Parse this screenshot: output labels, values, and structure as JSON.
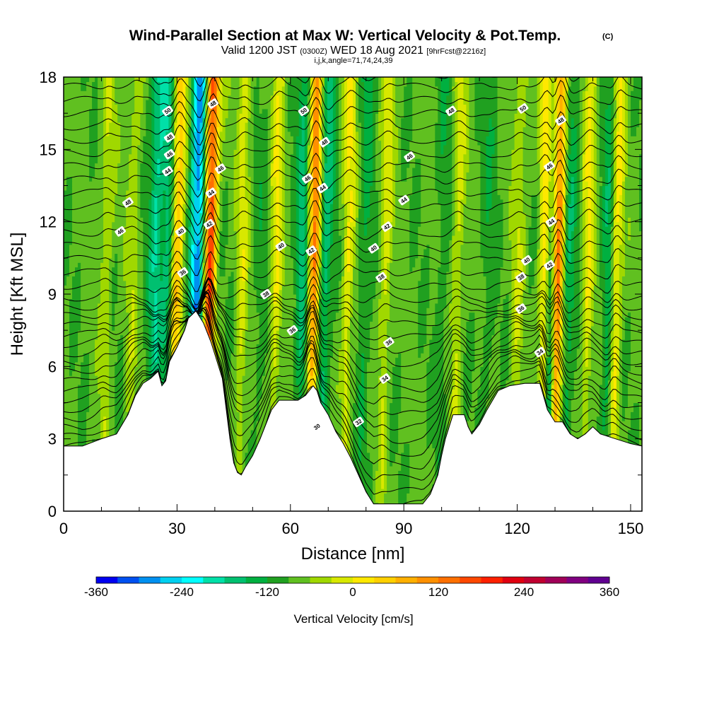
{
  "chart_data": {
    "type": "heatmap",
    "title": "Wind-Parallel Section at Max W: Vertical Velocity & Pot.Temp.",
    "title_mark": "(C)",
    "subtitle": {
      "prefix": "Valid 1200 JST",
      "utc": "(0300Z)",
      "date": "WED 18 Aug 2021",
      "forecast": "[9hrFcst@2216z]"
    },
    "subtitle2": "i,j,k,angle=71,74,24,39",
    "xlabel": "Distance [nm]",
    "ylabel": "Height [Kft MSL]",
    "xlim": [
      0,
      153
    ],
    "ylim": [
      0,
      18
    ],
    "x_ticks": [
      0,
      30,
      60,
      90,
      120,
      150
    ],
    "y_ticks": [
      0,
      3,
      6,
      9,
      12,
      15,
      18
    ],
    "grid": false,
    "colorbar": {
      "title": "Vertical Velocity [cm/s]",
      "placement": "bottom",
      "min": -360,
      "max": 360,
      "step": 40,
      "ticks": [
        "-360",
        "-240",
        "-120",
        "0",
        "120",
        "240",
        "360"
      ],
      "colors": [
        "#0000f0",
        "#0050f0",
        "#0090f0",
        "#00d0f0",
        "#00ffff",
        "#00e0a8",
        "#00c070",
        "#00b040",
        "#20a020",
        "#60c020",
        "#a0d800",
        "#d8e800",
        "#ffe800",
        "#ffd000",
        "#ffb000",
        "#ff9000",
        "#ff7000",
        "#ff4800",
        "#ff2000",
        "#e00010",
        "#c00030",
        "#a00058",
        "#800080",
        "#600090"
      ]
    },
    "terrain_profile": [
      [
        0,
        2.7
      ],
      [
        5,
        2.7
      ],
      [
        10,
        3.0
      ],
      [
        14,
        3.2
      ],
      [
        17,
        4.0
      ],
      [
        19,
        4.8
      ],
      [
        21,
        5.3
      ],
      [
        23,
        5.5
      ],
      [
        25,
        5.8
      ],
      [
        26,
        5.2
      ],
      [
        27,
        5.4
      ],
      [
        28,
        6.2
      ],
      [
        30,
        6.8
      ],
      [
        32,
        7.5
      ],
      [
        33,
        8.0
      ],
      [
        35,
        8.3
      ],
      [
        37,
        7.8
      ],
      [
        39,
        7.0
      ],
      [
        40,
        6.5
      ],
      [
        42,
        5.5
      ],
      [
        44,
        3.0
      ],
      [
        45,
        2.0
      ],
      [
        46,
        1.6
      ],
      [
        47,
        1.5
      ],
      [
        48,
        1.8
      ],
      [
        50,
        2.3
      ],
      [
        52,
        3.0
      ],
      [
        54,
        3.8
      ],
      [
        55,
        4.2
      ],
      [
        57,
        4.6
      ],
      [
        60,
        4.6
      ],
      [
        62,
        4.6
      ],
      [
        64,
        4.8
      ],
      [
        66,
        5.2
      ],
      [
        67,
        5.0
      ],
      [
        68,
        4.5
      ],
      [
        70,
        4.0
      ],
      [
        72,
        3.3
      ],
      [
        74,
        2.8
      ],
      [
        76,
        2.2
      ],
      [
        78,
        1.5
      ],
      [
        80,
        0.8
      ],
      [
        82,
        0.3
      ],
      [
        85,
        0.3
      ],
      [
        88,
        0.3
      ],
      [
        92,
        0.3
      ],
      [
        95,
        0.3
      ],
      [
        97,
        0.7
      ],
      [
        99,
        1.5
      ],
      [
        100,
        2.3
      ],
      [
        101,
        3.0
      ],
      [
        103,
        4.0
      ],
      [
        106,
        4.0
      ],
      [
        107,
        3.5
      ],
      [
        108,
        3.2
      ],
      [
        110,
        3.6
      ],
      [
        112,
        4.2
      ],
      [
        115,
        5.0
      ],
      [
        118,
        5.2
      ],
      [
        122,
        5.3
      ],
      [
        126,
        5.3
      ],
      [
        128,
        4.2
      ],
      [
        130,
        3.7
      ],
      [
        132,
        3.7
      ],
      [
        134,
        3.2
      ],
      [
        136,
        3.0
      ],
      [
        138,
        3.2
      ],
      [
        140,
        3.5
      ],
      [
        142,
        3.2
      ],
      [
        146,
        3.0
      ],
      [
        150,
        2.8
      ],
      [
        153,
        2.7
      ]
    ],
    "updrafts": [
      {
        "x": 38.5,
        "w": 340
      },
      {
        "x": 130.5,
        "w": 300
      },
      {
        "x": 66.0,
        "w": 270
      },
      {
        "x": 29.8,
        "w": 200
      },
      {
        "x": 127.2,
        "w": 200
      },
      {
        "x": 75.0,
        "w": 110
      },
      {
        "x": 146.0,
        "w": 140
      },
      {
        "x": 11.0,
        "w": 70
      },
      {
        "x": 56.0,
        "w": 110
      },
      {
        "x": 85.0,
        "w": 90
      },
      {
        "x": 104.0,
        "w": 80
      },
      {
        "x": 120.0,
        "w": 70
      },
      {
        "x": 138.5,
        "w": 110
      },
      {
        "x": 47.0,
        "w": 90
      },
      {
        "x": 18.0,
        "w": 60
      }
    ],
    "downdrafts": [
      {
        "x": 35.0,
        "w": -280
      },
      {
        "x": 128.5,
        "w": -160
      },
      {
        "x": 24.0,
        "w": -130
      },
      {
        "x": 69.0,
        "w": -120
      },
      {
        "x": 63.0,
        "w": -110
      },
      {
        "x": 27.2,
        "w": -110
      },
      {
        "x": 144.0,
        "w": -90
      },
      {
        "x": 133.5,
        "w": -80
      },
      {
        "x": 79.5,
        "w": -60
      },
      {
        "x": 112.0,
        "w": -40
      },
      {
        "x": 100.0,
        "w": -40
      },
      {
        "x": 52.0,
        "w": -30
      }
    ],
    "theta_contours": [
      "30",
      "32",
      "34",
      "36",
      "38",
      "40",
      "42",
      "44",
      "46",
      "48",
      "50"
    ],
    "theta_contour_labels": [
      {
        "text": "48",
        "x": 17,
        "y": 12.8
      },
      {
        "text": "46",
        "x": 15,
        "y": 11.6
      },
      {
        "text": "50",
        "x": 27.5,
        "y": 16.6
      },
      {
        "text": "48",
        "x": 28,
        "y": 15.5
      },
      {
        "text": "46",
        "x": 28,
        "y": 14.8
      },
      {
        "text": "44",
        "x": 27.5,
        "y": 14.1
      },
      {
        "text": "40",
        "x": 31,
        "y": 11.6
      },
      {
        "text": "36",
        "x": 31.5,
        "y": 9.9
      },
      {
        "text": "48",
        "x": 39.5,
        "y": 16.9
      },
      {
        "text": "46",
        "x": 41.5,
        "y": 14.2
      },
      {
        "text": "44",
        "x": 39,
        "y": 13.2
      },
      {
        "text": "42",
        "x": 38.5,
        "y": 11.9
      },
      {
        "text": "50",
        "x": 63.5,
        "y": 16.6
      },
      {
        "text": "48",
        "x": 69,
        "y": 15.3
      },
      {
        "text": "46",
        "x": 64.5,
        "y": 13.8
      },
      {
        "text": "44",
        "x": 68.5,
        "y": 13.4
      },
      {
        "text": "42",
        "x": 65.5,
        "y": 10.8
      },
      {
        "text": "40",
        "x": 57.5,
        "y": 11.0
      },
      {
        "text": "38",
        "x": 53.5,
        "y": 9.0
      },
      {
        "text": "36",
        "x": 60.5,
        "y": 7.5
      },
      {
        "text": "48",
        "x": 102.5,
        "y": 16.6
      },
      {
        "text": "46",
        "x": 91.5,
        "y": 14.7
      },
      {
        "text": "44",
        "x": 90,
        "y": 12.9
      },
      {
        "text": "42",
        "x": 85.5,
        "y": 11.8
      },
      {
        "text": "40",
        "x": 82,
        "y": 10.9
      },
      {
        "text": "38",
        "x": 84,
        "y": 9.7
      },
      {
        "text": "36",
        "x": 86,
        "y": 7.0
      },
      {
        "text": "34",
        "x": 85,
        "y": 5.5
      },
      {
        "text": "32",
        "x": 78,
        "y": 3.7
      },
      {
        "text": "30",
        "x": 67,
        "y": 3.5
      },
      {
        "text": "50",
        "x": 121.5,
        "y": 16.7
      },
      {
        "text": "48",
        "x": 131.5,
        "y": 16.2
      },
      {
        "text": "46",
        "x": 128.5,
        "y": 14.3
      },
      {
        "text": "44",
        "x": 129,
        "y": 12.0
      },
      {
        "text": "42",
        "x": 128.5,
        "y": 10.2
      },
      {
        "text": "40",
        "x": 122.5,
        "y": 10.4
      },
      {
        "text": "38",
        "x": 121,
        "y": 9.7
      },
      {
        "text": "36",
        "x": 121,
        "y": 8.4
      },
      {
        "text": "34",
        "x": 126,
        "y": 6.6
      }
    ]
  }
}
